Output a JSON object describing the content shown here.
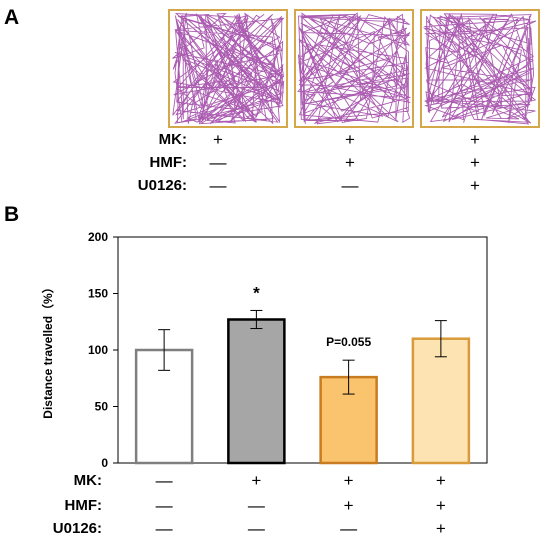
{
  "panel_a": {
    "letter": "A",
    "track_frame_color": "#d4a84a",
    "track_line_color": "#a24aa8",
    "conditions": [
      {
        "label": "MK:",
        "signs": [
          "+",
          "+",
          "+"
        ]
      },
      {
        "label": "HMF:",
        "signs": [
          "—",
          "+",
          "+"
        ]
      },
      {
        "label": "U0126:",
        "signs": [
          "—",
          "—",
          "+"
        ]
      }
    ]
  },
  "panel_b": {
    "letter": "B",
    "conditions": [
      {
        "label": "MK:",
        "signs": [
          "—",
          "+",
          "+",
          "+"
        ]
      },
      {
        "label": "HMF:",
        "signs": [
          "—",
          "—",
          "+",
          "+"
        ]
      },
      {
        "label": "U0126:",
        "signs": [
          "—",
          "—",
          "—",
          "+"
        ]
      }
    ]
  },
  "chart_data": {
    "type": "bar",
    "ylabel": "Distance travelled（%）",
    "ylim": [
      0,
      200
    ],
    "yticks": [
      0,
      50,
      100,
      150,
      200
    ],
    "categories": [
      "",
      "",
      "",
      ""
    ],
    "values": [
      100,
      127,
      76,
      110
    ],
    "errors": [
      18,
      8,
      15,
      16
    ],
    "annotations": [
      "",
      "*",
      "P=0.055",
      ""
    ],
    "bar_fill_colors": [
      "#ffffff",
      "#a6a6a6",
      "#fac46e",
      "#fde2b2"
    ],
    "bar_edge_colors": [
      "#7f7f7f",
      "#000000",
      "#c97b1f",
      "#d99a3a"
    ],
    "grid": false
  }
}
